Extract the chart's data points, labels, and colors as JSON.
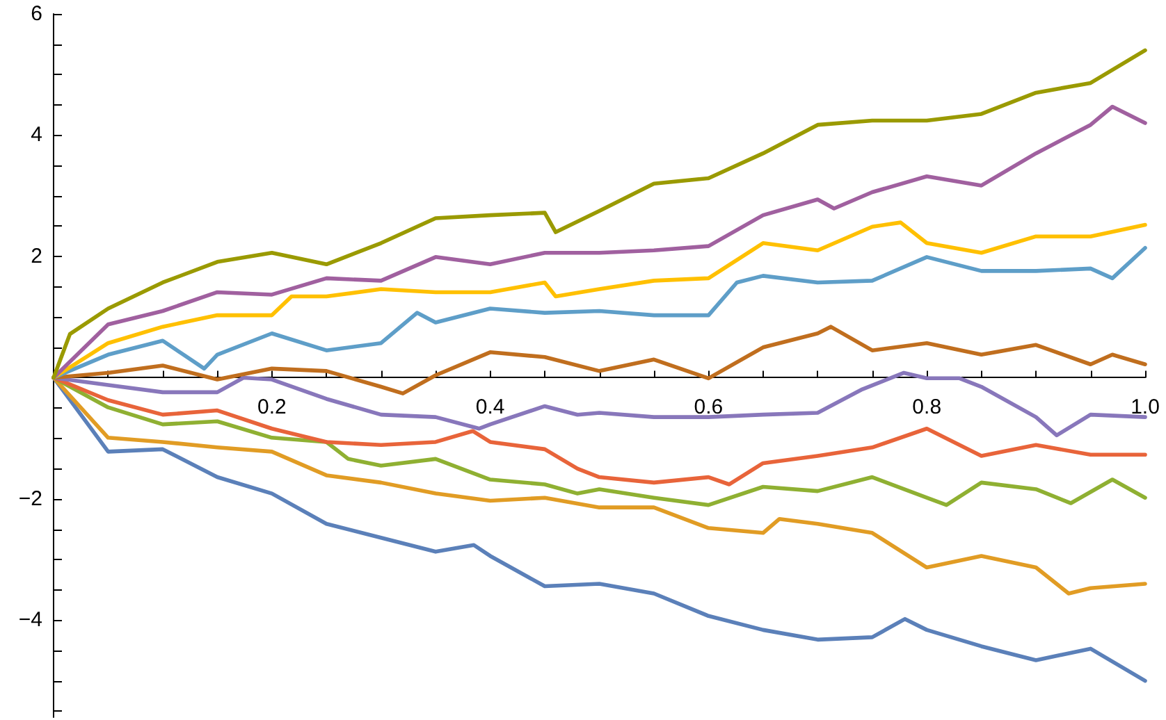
{
  "chart_data": {
    "type": "line",
    "xlim": [
      0,
      1
    ],
    "ylim": [
      -5.6,
      6
    ],
    "grid": false,
    "marker": "none",
    "line_style": "solid",
    "xticks": [
      {
        "value": 0,
        "label": null
      },
      {
        "value": 0.05,
        "label": null
      },
      {
        "value": 0.1,
        "label": null
      },
      {
        "value": 0.15,
        "label": null
      },
      0.2,
      {
        "value": 0.25,
        "label": null
      },
      {
        "value": 0.3,
        "label": null
      },
      {
        "value": 0.35,
        "label": null
      },
      0.4,
      {
        "value": 0.45,
        "label": null
      },
      {
        "value": 0.5,
        "label": null
      },
      {
        "value": 0.55,
        "label": null
      },
      0.6,
      {
        "value": 0.65,
        "label": null
      },
      {
        "value": 0.7,
        "label": null
      },
      {
        "value": 0.75,
        "label": null
      },
      0.8,
      {
        "value": 0.85,
        "label": null
      },
      {
        "value": 0.9,
        "label": null
      },
      {
        "value": 0.95,
        "label": null
      },
      {
        "value": 1,
        "label": "1.0"
      }
    ],
    "yticks": [
      {
        "value": -5.5,
        "label": null
      },
      {
        "value": -5,
        "label": null
      },
      {
        "value": -4.5,
        "label": null
      },
      {
        "value": -4,
        "label": "−4"
      },
      {
        "value": -3.5,
        "label": null
      },
      {
        "value": -3,
        "label": null
      },
      {
        "value": -2.5,
        "label": null
      },
      {
        "value": -2,
        "label": "−2"
      },
      {
        "value": -1.5,
        "label": null
      },
      {
        "value": -1,
        "label": null
      },
      {
        "value": -0.5,
        "label": null
      },
      {
        "value": 0,
        "label": null
      },
      {
        "value": 0.5,
        "label": null
      },
      {
        "value": 1,
        "label": null
      },
      {
        "value": 1.5,
        "label": null
      },
      2,
      {
        "value": 2.5,
        "label": null
      },
      {
        "value": 3,
        "label": null
      },
      {
        "value": 3.5,
        "label": null
      },
      4,
      {
        "value": 4.5,
        "label": null
      },
      {
        "value": 5,
        "label": null
      },
      {
        "value": 5.5,
        "label": null
      },
      6
    ],
    "series": [
      {
        "color": "#5b80b9",
        "x": [
          0,
          0.05,
          0.1,
          0.15,
          0.2,
          0.25,
          0.3,
          0.35,
          0.385,
          0.4,
          0.45,
          0.5,
          0.55,
          0.6,
          0.65,
          0.7,
          0.75,
          0.78,
          0.8,
          0.85,
          0.9,
          0.95,
          1
        ],
        "values": [
          0,
          -1.22,
          -1.18,
          -1.64,
          -1.91,
          -2.41,
          -2.64,
          -2.87,
          -2.76,
          -2.94,
          -3.44,
          -3.4,
          -3.56,
          -3.93,
          -4.16,
          -4.32,
          -4.28,
          -3.98,
          -4.16,
          -4.43,
          -4.66,
          -4.47,
          -5.0
        ]
      },
      {
        "color": "#e19c24",
        "x": [
          0,
          0.05,
          0.1,
          0.15,
          0.2,
          0.25,
          0.3,
          0.35,
          0.4,
          0.45,
          0.5,
          0.55,
          0.6,
          0.65,
          0.665,
          0.7,
          0.75,
          0.8,
          0.85,
          0.9,
          0.93,
          0.95,
          1
        ],
        "values": [
          0,
          -0.99,
          -1.06,
          -1.15,
          -1.22,
          -1.61,
          -1.73,
          -1.91,
          -2.03,
          -1.98,
          -2.14,
          -2.14,
          -2.48,
          -2.56,
          -2.33,
          -2.41,
          -2.56,
          -3.13,
          -2.94,
          -3.13,
          -3.56,
          -3.47,
          -3.4
        ]
      },
      {
        "color": "#8fb032",
        "x": [
          0,
          0.05,
          0.1,
          0.15,
          0.2,
          0.25,
          0.27,
          0.3,
          0.35,
          0.4,
          0.45,
          0.48,
          0.5,
          0.55,
          0.6,
          0.65,
          0.7,
          0.75,
          0.8,
          0.818,
          0.85,
          0.9,
          0.932,
          0.97,
          1
        ],
        "values": [
          0,
          -0.49,
          -0.77,
          -0.72,
          -0.99,
          -1.06,
          -1.34,
          -1.45,
          -1.34,
          -1.68,
          -1.76,
          -1.91,
          -1.84,
          -1.98,
          -2.1,
          -1.8,
          -1.87,
          -1.64,
          -1.98,
          -2.1,
          -1.73,
          -1.84,
          -2.07,
          -1.68,
          -1.98
        ]
      },
      {
        "color": "#e8643a",
        "x": [
          0,
          0.05,
          0.1,
          0.15,
          0.2,
          0.25,
          0.3,
          0.35,
          0.384,
          0.4,
          0.45,
          0.48,
          0.5,
          0.55,
          0.6,
          0.619,
          0.65,
          0.7,
          0.75,
          0.8,
          0.85,
          0.9,
          0.95,
          1
        ],
        "values": [
          0,
          -0.37,
          -0.61,
          -0.54,
          -0.84,
          -1.06,
          -1.11,
          -1.06,
          -0.88,
          -1.06,
          -1.18,
          -1.5,
          -1.64,
          -1.73,
          -1.64,
          -1.76,
          -1.41,
          -1.29,
          -1.15,
          -0.84,
          -1.29,
          -1.11,
          -1.27,
          -1.27
        ]
      },
      {
        "color": "#8877bb",
        "x": [
          0,
          0.05,
          0.1,
          0.15,
          0.174,
          0.2,
          0.25,
          0.3,
          0.35,
          0.39,
          0.4,
          0.45,
          0.48,
          0.5,
          0.55,
          0.6,
          0.65,
          0.7,
          0.741,
          0.779,
          0.8,
          0.83,
          0.85,
          0.9,
          0.919,
          0.95,
          1
        ],
        "values": [
          0,
          -0.12,
          -0.24,
          -0.24,
          0,
          -0.03,
          -0.35,
          -0.61,
          -0.65,
          -0.84,
          -0.77,
          -0.47,
          -0.61,
          -0.58,
          -0.65,
          -0.65,
          -0.61,
          -0.58,
          -0.19,
          0.08,
          -0.01,
          -0.01,
          -0.15,
          -0.65,
          -0.95,
          -0.61,
          -0.65
        ]
      },
      {
        "color": "#c06e1e",
        "x": [
          0,
          0.05,
          0.1,
          0.15,
          0.2,
          0.25,
          0.3,
          0.32,
          0.35,
          0.4,
          0.45,
          0.5,
          0.55,
          0.6,
          0.65,
          0.7,
          0.712,
          0.75,
          0.8,
          0.85,
          0.9,
          0.95,
          0.97,
          1
        ],
        "values": [
          0,
          0.08,
          0.2,
          -0.03,
          0.15,
          0.11,
          -0.15,
          -0.26,
          0.04,
          0.42,
          0.34,
          0.11,
          0.3,
          -0.01,
          0.5,
          0.73,
          0.84,
          0.45,
          0.57,
          0.38,
          0.54,
          0.22,
          0.38,
          0.22
        ]
      },
      {
        "color": "#5e9ec8",
        "x": [
          0,
          0.05,
          0.1,
          0.138,
          0.15,
          0.2,
          0.25,
          0.3,
          0.333,
          0.35,
          0.4,
          0.45,
          0.5,
          0.55,
          0.6,
          0.626,
          0.65,
          0.7,
          0.75,
          0.8,
          0.85,
          0.9,
          0.95,
          0.97,
          1
        ],
        "values": [
          0,
          0.38,
          0.61,
          0.15,
          0.38,
          0.73,
          0.45,
          0.57,
          1.07,
          0.91,
          1.14,
          1.07,
          1.1,
          1.03,
          1.03,
          1.57,
          1.68,
          1.57,
          1.6,
          1.99,
          1.76,
          1.76,
          1.8,
          1.64,
          2.14
        ]
      },
      {
        "color": "#ffc000",
        "x": [
          0,
          0.05,
          0.1,
          0.15,
          0.2,
          0.218,
          0.25,
          0.3,
          0.35,
          0.4,
          0.45,
          0.46,
          0.5,
          0.55,
          0.6,
          0.65,
          0.7,
          0.75,
          0.776,
          0.8,
          0.85,
          0.9,
          0.95,
          1
        ],
        "values": [
          0,
          0.57,
          0.84,
          1.03,
          1.03,
          1.34,
          1.34,
          1.46,
          1.41,
          1.41,
          1.57,
          1.34,
          1.46,
          1.6,
          1.64,
          2.22,
          2.1,
          2.49,
          2.56,
          2.22,
          2.06,
          2.33,
          2.33,
          2.52
        ]
      },
      {
        "color": "#a0609f",
        "x": [
          0,
          0.05,
          0.1,
          0.15,
          0.2,
          0.25,
          0.3,
          0.35,
          0.4,
          0.45,
          0.5,
          0.55,
          0.6,
          0.65,
          0.7,
          0.715,
          0.75,
          0.8,
          0.85,
          0.9,
          0.95,
          0.97,
          1
        ],
        "values": [
          0,
          0.88,
          1.1,
          1.41,
          1.37,
          1.64,
          1.6,
          1.99,
          1.87,
          2.06,
          2.06,
          2.1,
          2.17,
          2.68,
          2.94,
          2.79,
          3.06,
          3.32,
          3.17,
          3.7,
          4.17,
          4.47,
          4.2
        ]
      },
      {
        "color": "#9a9a00",
        "x": [
          0,
          0.015,
          0.05,
          0.1,
          0.15,
          0.2,
          0.25,
          0.3,
          0.35,
          0.4,
          0.45,
          0.46,
          0.5,
          0.55,
          0.6,
          0.65,
          0.7,
          0.75,
          0.8,
          0.85,
          0.9,
          0.95,
          1
        ],
        "values": [
          0,
          0.72,
          1.14,
          1.57,
          1.91,
          2.06,
          1.87,
          2.22,
          2.63,
          2.68,
          2.72,
          2.4,
          2.75,
          3.2,
          3.29,
          3.7,
          4.17,
          4.24,
          4.24,
          4.35,
          4.7,
          4.86,
          5.4
        ]
      }
    ]
  }
}
